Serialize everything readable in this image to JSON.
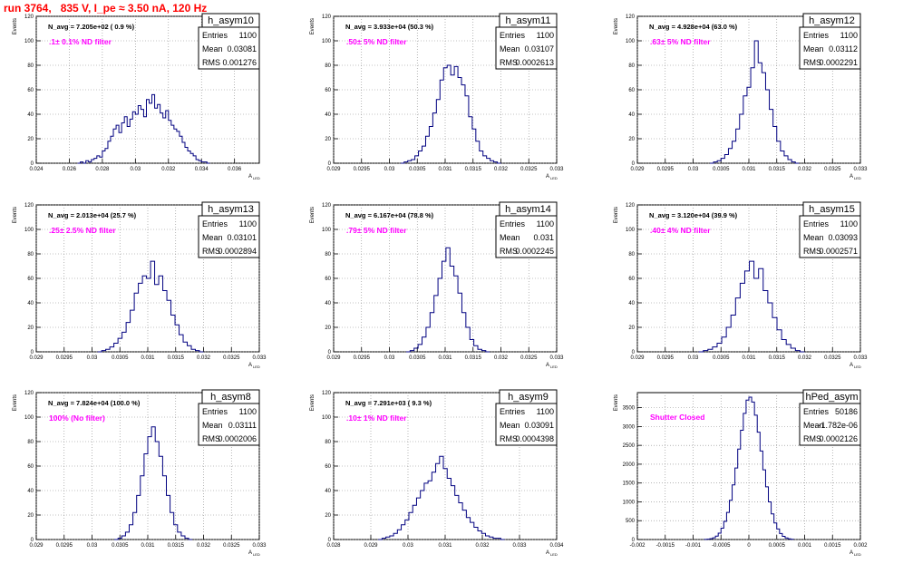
{
  "run_title": "run 3764,   835 V, I_pe ≈ 3.50 nA, 120 Hz",
  "common": {
    "ylabel": "Events",
    "xlabel": "A",
    "xlabel_sub": "LED",
    "stat_labels": [
      "Entries",
      "Mean",
      "RMS"
    ],
    "colors": {
      "hist": "#000080",
      "filter_text": "#ff00ff",
      "title_red": "#ff0000",
      "grid": "#888888"
    }
  },
  "chart_data": [
    {
      "type": "bar",
      "title": "h_asym10",
      "navg": "N_avg = 7.205e+02 ( 0.9 %)",
      "filter": ".1± 0.1% ND filter",
      "stats": [
        "1100",
        "0.03081",
        "0.001276"
      ],
      "xlim": [
        0.024,
        0.0375
      ],
      "ylim": [
        0,
        120
      ],
      "xticks": [
        "0.024",
        "0.026",
        "0.028",
        "0.03",
        "0.032",
        "0.034",
        "0.036"
      ],
      "xtick_values": [
        0.024,
        0.026,
        0.028,
        0.03,
        0.032,
        0.034,
        0.036
      ],
      "yticks": [
        "0",
        "20",
        "40",
        "60",
        "80",
        "100",
        "120"
      ],
      "ytick_values": [
        0,
        20,
        40,
        60,
        80,
        100,
        120
      ],
      "hist_range": [
        0.0265,
        0.0345
      ],
      "values": [
        0,
        1,
        0,
        2,
        1,
        3,
        4,
        6,
        5,
        10,
        12,
        18,
        22,
        28,
        31,
        25,
        33,
        38,
        30,
        36,
        42,
        40,
        47,
        44,
        38,
        52,
        49,
        56,
        45,
        48,
        41,
        37,
        43,
        35,
        31,
        28,
        26,
        22,
        17,
        13,
        10,
        8,
        6,
        3,
        2,
        1,
        1,
        0
      ]
    },
    {
      "type": "bar",
      "title": "h_asym11",
      "navg": "N_avg = 3.933e+04 (50.3 %)",
      "filter": ".50± 5% ND filter",
      "stats": [
        "1100",
        "0.03107",
        "0.0002613"
      ],
      "xlim": [
        0.029,
        0.033
      ],
      "ylim": [
        0,
        120
      ],
      "xticks": [
        "0.029",
        "0.0295",
        "0.03",
        "0.0305",
        "0.031",
        "0.0315",
        "0.032",
        "0.0325",
        "0.033"
      ],
      "xtick_values": [
        0.029,
        0.0295,
        0.03,
        0.0305,
        0.031,
        0.0315,
        0.032,
        0.0325,
        0.033
      ],
      "yticks": [
        "0",
        "20",
        "40",
        "60",
        "80",
        "100",
        "120"
      ],
      "ytick_values": [
        0,
        20,
        40,
        60,
        80,
        100,
        120
      ],
      "hist_range": [
        0.0302,
        0.032
      ],
      "values": [
        0,
        1,
        2,
        3,
        6,
        10,
        14,
        22,
        30,
        41,
        52,
        68,
        78,
        80,
        72,
        79,
        70,
        64,
        55,
        38,
        28,
        18,
        10,
        6,
        4,
        2,
        1,
        0
      ]
    },
    {
      "type": "bar",
      "title": "h_asym12",
      "navg": "N_avg = 4.928e+04 (63.0 %)",
      "filter": ".63± 5% ND filter",
      "stats": [
        "1100",
        "0.03112",
        "0.0002291"
      ],
      "xlim": [
        0.029,
        0.033
      ],
      "ylim": [
        0,
        120
      ],
      "xticks": [
        "0.029",
        "0.0295",
        "0.03",
        "0.0305",
        "0.031",
        "0.0315",
        "0.032",
        "0.0325",
        "0.033"
      ],
      "xtick_values": [
        0.029,
        0.0295,
        0.03,
        0.0305,
        0.031,
        0.0315,
        0.032,
        0.0325,
        0.033
      ],
      "yticks": [
        "0",
        "20",
        "40",
        "60",
        "80",
        "100",
        "120"
      ],
      "ytick_values": [
        0,
        20,
        40,
        60,
        80,
        100,
        120
      ],
      "hist_range": [
        0.0303,
        0.0319
      ],
      "values": [
        0,
        1,
        2,
        4,
        7,
        12,
        18,
        28,
        40,
        55,
        62,
        78,
        100,
        82,
        74,
        60,
        44,
        30,
        18,
        10,
        6,
        3,
        1,
        0
      ]
    },
    {
      "type": "bar",
      "title": "h_asym13",
      "navg": "N_avg = 2.013e+04 (25.7 %)",
      "filter": ".25± 2.5% ND filter",
      "stats": [
        "1100",
        "0.03101",
        "0.0002894"
      ],
      "xlim": [
        0.029,
        0.033
      ],
      "ylim": [
        0,
        120
      ],
      "xticks": [
        "0.029",
        "0.0295",
        "0.03",
        "0.0305",
        "0.031",
        "0.0315",
        "0.032",
        "0.0325",
        "0.033"
      ],
      "xtick_values": [
        0.029,
        0.0295,
        0.03,
        0.0305,
        0.031,
        0.0315,
        0.032,
        0.0325,
        0.033
      ],
      "yticks": [
        "0",
        "20",
        "40",
        "60",
        "80",
        "100",
        "120"
      ],
      "ytick_values": [
        0,
        20,
        40,
        60,
        80,
        100,
        120
      ],
      "hist_range": [
        0.0301,
        0.032
      ],
      "values": [
        0,
        1,
        2,
        4,
        7,
        11,
        16,
        24,
        34,
        48,
        56,
        62,
        60,
        74,
        55,
        62,
        50,
        42,
        30,
        22,
        14,
        8,
        5,
        2,
        1,
        0
      ]
    },
    {
      "type": "bar",
      "title": "h_asym14",
      "navg": "N_avg = 6.167e+04 (78.8 %)",
      "filter": ".79± 5% ND filter",
      "stats": [
        "1100",
        "0.031",
        "0.0002245"
      ],
      "xlim": [
        0.029,
        0.033
      ],
      "ylim": [
        0,
        120
      ],
      "xticks": [
        "0.029",
        "0.0295",
        "0.03",
        "0.0305",
        "0.031",
        "0.0315",
        "0.032",
        "0.0325",
        "0.033"
      ],
      "xtick_values": [
        0.029,
        0.0295,
        0.03,
        0.0305,
        0.031,
        0.0315,
        0.032,
        0.0325,
        0.033
      ],
      "yticks": [
        "0",
        "20",
        "40",
        "60",
        "80",
        "100",
        "120"
      ],
      "ytick_values": [
        0,
        20,
        40,
        60,
        80,
        100,
        120
      ],
      "hist_range": [
        0.0303,
        0.0318
      ],
      "values": [
        0,
        1,
        3,
        6,
        12,
        20,
        32,
        46,
        60,
        74,
        85,
        70,
        62,
        48,
        32,
        20,
        10,
        5,
        2,
        1,
        0
      ]
    },
    {
      "type": "bar",
      "title": "h_asym15",
      "navg": "N_avg = 3.120e+04 (39.9 %)",
      "filter": ".40± 4% ND filter",
      "stats": [
        "1100",
        "0.03093",
        "0.0002571"
      ],
      "xlim": [
        0.029,
        0.033
      ],
      "ylim": [
        0,
        120
      ],
      "xticks": [
        "0.029",
        "0.0295",
        "0.03",
        "0.0305",
        "0.031",
        "0.0315",
        "0.032",
        "0.0325",
        "0.033"
      ],
      "xtick_values": [
        0.029,
        0.0295,
        0.03,
        0.0305,
        0.031,
        0.0315,
        0.032,
        0.0325,
        0.033
      ],
      "yticks": [
        "0",
        "20",
        "40",
        "60",
        "80",
        "100",
        "120"
      ],
      "ytick_values": [
        0,
        20,
        40,
        60,
        80,
        100,
        120
      ],
      "hist_range": [
        0.0301,
        0.032
      ],
      "values": [
        0,
        1,
        2,
        4,
        7,
        12,
        20,
        30,
        44,
        56,
        66,
        74,
        60,
        68,
        50,
        40,
        28,
        18,
        10,
        6,
        3,
        1,
        0
      ]
    },
    {
      "type": "bar",
      "title": "h_asym8",
      "navg": "N_avg = 7.824e+04 (100.0 %)",
      "filter": "100% (No filter)",
      "stats": [
        "1100",
        "0.03111",
        "0.0002006"
      ],
      "xlim": [
        0.029,
        0.033
      ],
      "ylim": [
        0,
        120
      ],
      "xticks": [
        "0.029",
        "0.0295",
        "0.03",
        "0.0305",
        "0.031",
        "0.0315",
        "0.032",
        "0.0325",
        "0.033"
      ],
      "xtick_values": [
        0.029,
        0.0295,
        0.03,
        0.0305,
        0.031,
        0.0315,
        0.032,
        0.0325,
        0.033
      ],
      "yticks": [
        "0",
        "20",
        "40",
        "60",
        "80",
        "100",
        "120"
      ],
      "ytick_values": [
        0,
        20,
        40,
        60,
        80,
        100,
        120
      ],
      "hist_range": [
        0.0304,
        0.0318
      ],
      "values": [
        0,
        1,
        3,
        6,
        12,
        22,
        36,
        52,
        70,
        84,
        92,
        80,
        68,
        52,
        36,
        22,
        12,
        6,
        3,
        1,
        0
      ]
    },
    {
      "type": "bar",
      "title": "h_asym9",
      "navg": "N_avg = 7.291e+03 ( 9.3 %)",
      "filter": ".10± 1% ND filter",
      "stats": [
        "1100",
        "0.03091",
        "0.0004398"
      ],
      "xlim": [
        0.028,
        0.034
      ],
      "ylim": [
        0,
        120
      ],
      "xticks": [
        "0.028",
        "0.029",
        "0.03",
        "0.031",
        "0.032",
        "0.033",
        "0.034"
      ],
      "xtick_values": [
        0.028,
        0.029,
        0.03,
        0.031,
        0.032,
        0.033,
        0.034
      ],
      "yticks": [
        "0",
        "20",
        "40",
        "60",
        "80",
        "100",
        "120"
      ],
      "ytick_values": [
        0,
        20,
        40,
        60,
        80,
        100,
        120
      ],
      "hist_range": [
        0.0292,
        0.0326
      ],
      "values": [
        0,
        1,
        2,
        3,
        5,
        8,
        12,
        16,
        22,
        28,
        34,
        40,
        46,
        48,
        55,
        62,
        68,
        58,
        50,
        44,
        36,
        30,
        24,
        18,
        14,
        10,
        7,
        5,
        3,
        2,
        1,
        1,
        0
      ]
    },
    {
      "type": "bar",
      "title": "hPed_asym",
      "navg": "",
      "filter": "Shutter Closed",
      "stats": [
        "50186",
        "-1.782e-06",
        "0.0002126"
      ],
      "xlim": [
        -0.002,
        0.002
      ],
      "ylim": [
        0,
        3900
      ],
      "xticks": [
        "-0.002",
        "-0.0015",
        "-0.001",
        "-0.0005",
        "0",
        "0.0005",
        "0.001",
        "0.0015",
        "0.002"
      ],
      "xtick_values": [
        -0.002,
        -0.0015,
        -0.001,
        -0.0005,
        0,
        0.0005,
        0.001,
        0.0015,
        0.002
      ],
      "yticks": [
        "0",
        "500",
        "1000",
        "1500",
        "2000",
        "2500",
        "3000",
        "3500"
      ],
      "ytick_values": [
        0,
        500,
        1000,
        1500,
        2000,
        2500,
        3000,
        3500
      ],
      "hist_range": [
        -0.0008,
        0.0008
      ],
      "values": [
        2,
        8,
        20,
        45,
        90,
        170,
        300,
        480,
        720,
        1040,
        1450,
        1900,
        2400,
        2900,
        3350,
        3700,
        3780,
        3650,
        3300,
        2850,
        2350,
        1850,
        1400,
        1000,
        680,
        440,
        280,
        160,
        85,
        42,
        18,
        6
      ]
    }
  ]
}
